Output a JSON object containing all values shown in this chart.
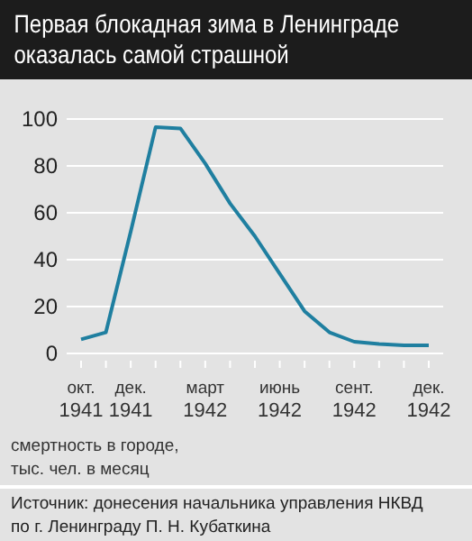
{
  "chart_data": {
    "type": "line",
    "title": "Первая блокадная зима в Ленинграде оказалась самой страшной",
    "ylabel": "смертность в городе, тыс. чел. в месяц",
    "annotations": [
      "Источник: донесения начальника управления НКВД по г. Ленинграду П. Н. Кубаткина"
    ],
    "categories": [
      "окт. 1941",
      null,
      "дек. 1941",
      null,
      null,
      "март 1942",
      null,
      null,
      "июнь 1942",
      null,
      null,
      "сент. 1942",
      null,
      null,
      "дек. 1942"
    ],
    "series": [
      {
        "color": "#1f7fa0",
        "values": [
          6,
          9,
          52,
          96.5,
          96,
          81,
          64,
          50,
          34,
          18,
          9,
          5,
          4,
          3.5,
          3.5
        ]
      }
    ],
    "ylim": [
      0,
      100
    ],
    "yticks": [
      0,
      20,
      40,
      60,
      80,
      100
    ],
    "grid": "y",
    "marker": "none",
    "line_style": "solid"
  }
}
